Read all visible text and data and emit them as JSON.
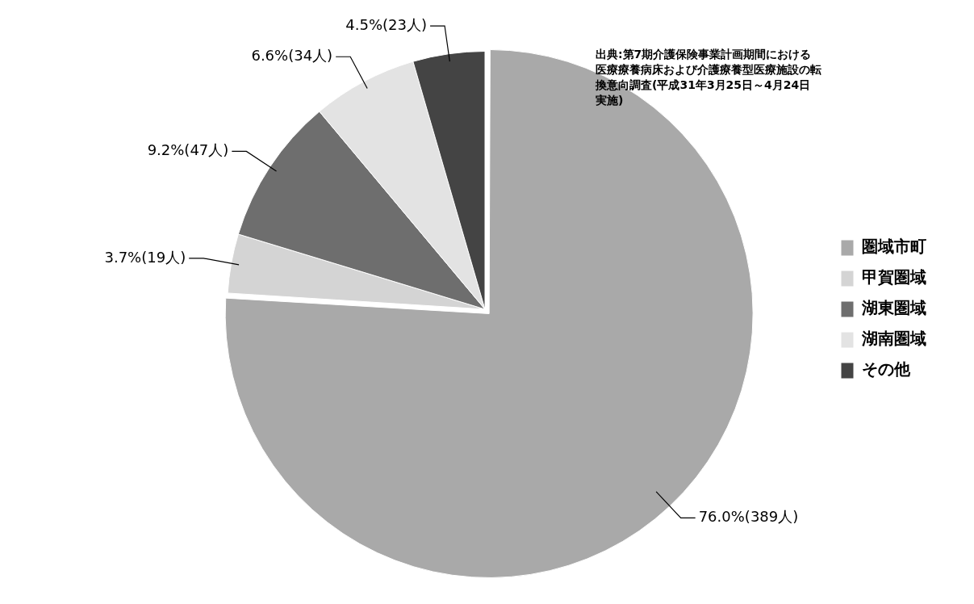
{
  "chart_data": {
    "type": "pie",
    "categories": [
      "圏域市町",
      "甲賀圏域",
      "湖東圏域",
      "湖南圏域",
      "その他"
    ],
    "values": [
      76.0,
      3.7,
      9.2,
      6.6,
      4.5
    ],
    "value_labels": [
      "76.0%(389人)",
      "3.7%(19人)",
      "9.2%(47人)",
      "6.6%(34人)",
      "4.5%(23人)"
    ],
    "colors": [
      "#a9a9a9",
      "#d4d4d4",
      "#6e6e6e",
      "#e3e3e3",
      "#444444"
    ],
    "legend": "right",
    "annotations": [
      "出典:第7期介護保険事業計画期間における医療療養病床および介護療養型医療施設の転換意向調査(平成31年3月25日～4月24日実施)"
    ]
  }
}
